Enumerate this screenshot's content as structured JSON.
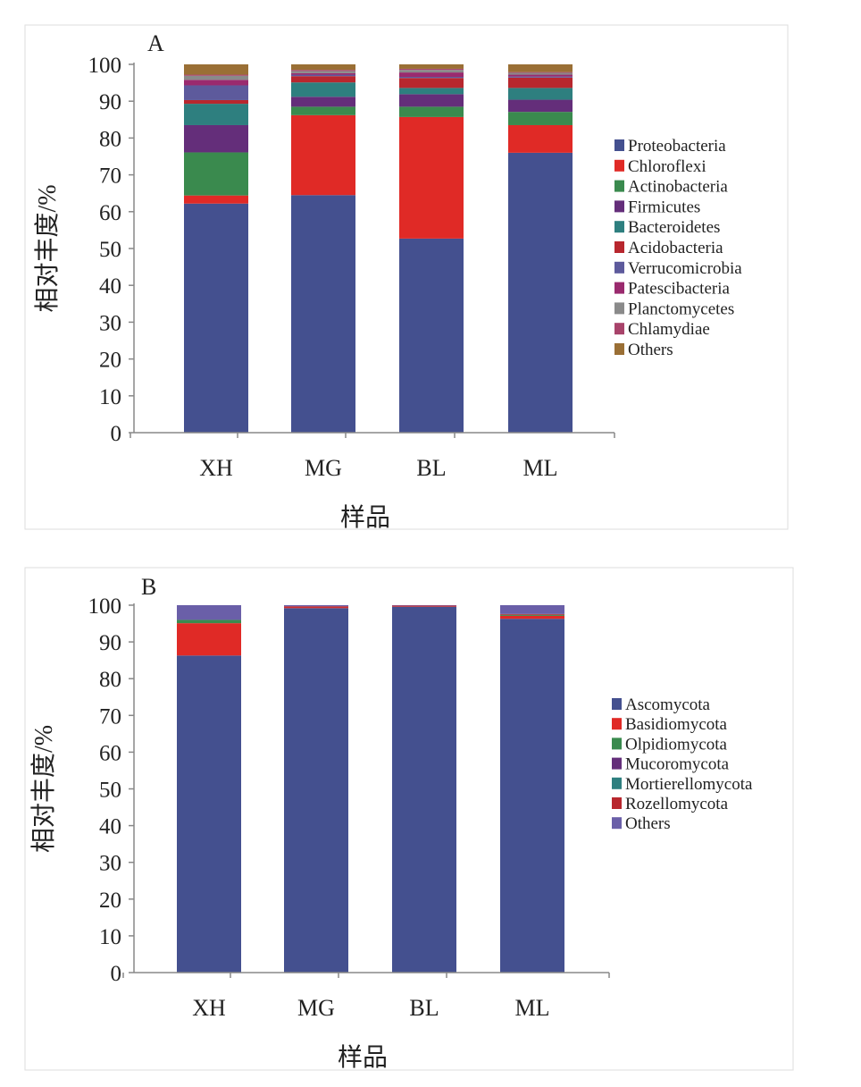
{
  "chart_data": [
    {
      "type": "bar",
      "stacked": true,
      "panel_label": "A",
      "xlabel": "样品",
      "ylabel": "相对丰度/%",
      "ylim": [
        0,
        100
      ],
      "yticks": [
        0,
        10,
        20,
        30,
        40,
        50,
        60,
        70,
        80,
        90,
        100
      ],
      "categories": [
        "XH",
        "MG",
        "BL",
        "ML"
      ],
      "legend_position": "right",
      "grid": false,
      "series": [
        {
          "name": "Proteobacteria",
          "color": "#44508f",
          "values": [
            62.2,
            64.5,
            52.7,
            76.0
          ]
        },
        {
          "name": "Chloroflexi",
          "color": "#e02a26",
          "values": [
            2.2,
            21.7,
            33.0,
            7.5
          ]
        },
        {
          "name": "Actinobacteria",
          "color": "#3a8a4e",
          "values": [
            11.7,
            2.3,
            2.8,
            3.6
          ]
        },
        {
          "name": "Firmicutes",
          "color": "#642e7a",
          "values": [
            7.4,
            2.7,
            3.4,
            3.3
          ]
        },
        {
          "name": "Bacteroidetes",
          "color": "#2e7f7f",
          "values": [
            5.8,
            3.9,
            1.7,
            3.2
          ]
        },
        {
          "name": "Acidobacteria",
          "color": "#b8272e",
          "values": [
            1.0,
            1.7,
            2.7,
            2.8
          ]
        },
        {
          "name": "Verrucomicrobia",
          "color": "#5d5a9c",
          "values": [
            4.0,
            0.4,
            0.3,
            0.3
          ]
        },
        {
          "name": "Patescibacteria",
          "color": "#9a2a6e",
          "values": [
            1.5,
            0.4,
            1.2,
            0.5
          ]
        },
        {
          "name": "Planctomycetes",
          "color": "#8a8a8a",
          "values": [
            1.1,
            0.6,
            0.7,
            0.5
          ]
        },
        {
          "name": "Chlamydiae",
          "color": "#a8436a",
          "values": [
            0.3,
            0.3,
            0.3,
            0.2
          ]
        },
        {
          "name": "Others",
          "color": "#9a6f35",
          "values": [
            2.8,
            1.5,
            1.2,
            2.1
          ]
        }
      ]
    },
    {
      "type": "bar",
      "stacked": true,
      "panel_label": "B",
      "xlabel": "样品",
      "ylabel": "相对丰度/%",
      "ylim": [
        0,
        100
      ],
      "yticks": [
        0,
        10,
        20,
        30,
        40,
        50,
        60,
        70,
        80,
        90,
        100
      ],
      "categories": [
        "XH",
        "MG",
        "BL",
        "ML"
      ],
      "legend_position": "right",
      "grid": false,
      "series": [
        {
          "name": "Ascomycota",
          "color": "#44508f",
          "values": [
            86.3,
            99.2,
            99.6,
            96.3
          ]
        },
        {
          "name": "Basidiomycota",
          "color": "#e02a26",
          "values": [
            8.8,
            0.2,
            0.3,
            0.8
          ]
        },
        {
          "name": "Olpidiomycota",
          "color": "#3a8a4e",
          "values": [
            0.9,
            0.0,
            0.0,
            0.3
          ]
        },
        {
          "name": "Mucoromycota",
          "color": "#642e7a",
          "values": [
            0.0,
            0.0,
            0.0,
            0.0
          ]
        },
        {
          "name": "Mortierellomycota",
          "color": "#2e7f7f",
          "values": [
            0.0,
            0.0,
            0.0,
            0.0
          ]
        },
        {
          "name": "Rozellomycota",
          "color": "#b8272e",
          "values": [
            0.0,
            0.3,
            0.0,
            0.2
          ]
        },
        {
          "name": "Others",
          "color": "#6a5fa8",
          "values": [
            4.0,
            0.3,
            0.1,
            2.4
          ]
        }
      ]
    }
  ]
}
